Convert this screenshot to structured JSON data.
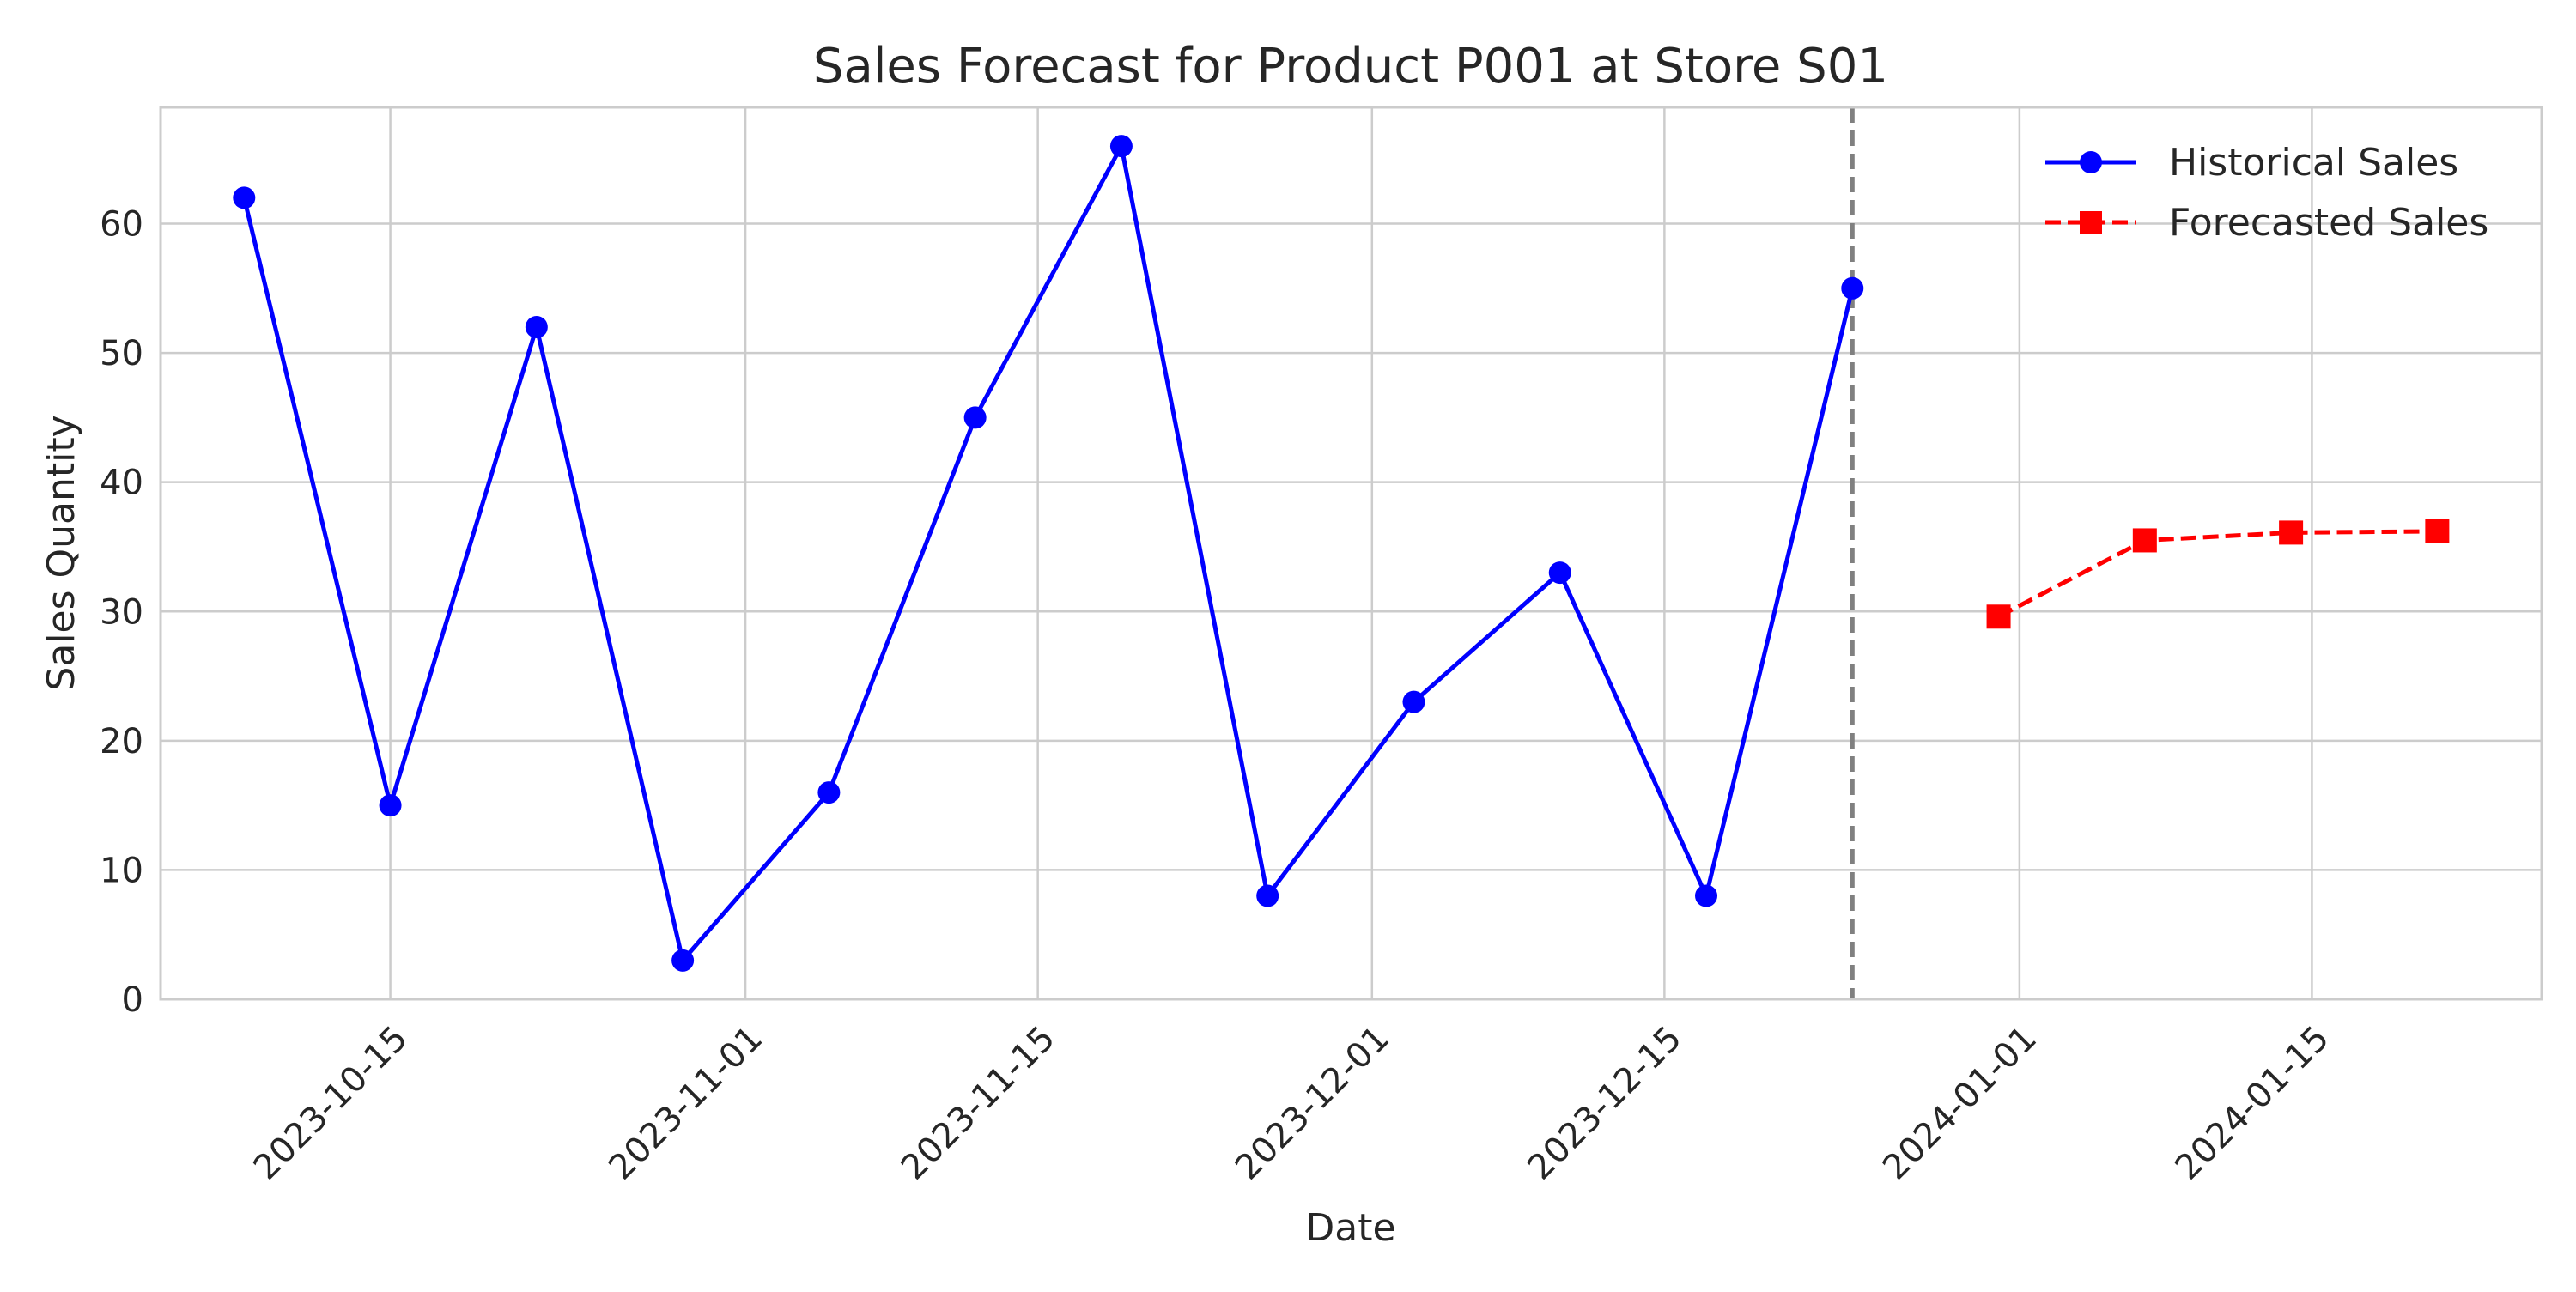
{
  "chart_data": {
    "type": "line",
    "title": "Sales Forecast for Product P001 at Store S01",
    "xlabel": "Date",
    "ylabel": "Sales Quantity",
    "x_type": "date",
    "xlim": [
      "2023-10-04",
      "2024-01-26"
    ],
    "ylim": [
      0,
      69
    ],
    "y_ticks": [
      0,
      10,
      20,
      30,
      40,
      50,
      60
    ],
    "x_ticks": [
      "2023-10-15",
      "2023-11-01",
      "2023-11-15",
      "2023-12-01",
      "2023-12-15",
      "2024-01-01",
      "2024-01-15"
    ],
    "grid": true,
    "legend_position": "top-right",
    "vertical_marker": {
      "x": "2023-12-24",
      "color": "#808080",
      "style": "dashed"
    },
    "series": [
      {
        "name": "Historical Sales",
        "color": "#0000ff",
        "marker": "circle",
        "line_style": "solid",
        "x": [
          "2023-10-08",
          "2023-10-15",
          "2023-10-22",
          "2023-10-29",
          "2023-11-05",
          "2023-11-12",
          "2023-11-19",
          "2023-11-26",
          "2023-12-03",
          "2023-12-10",
          "2023-12-17",
          "2023-12-24"
        ],
        "values": [
          62,
          15,
          52,
          3,
          16,
          45,
          66,
          8,
          23,
          33,
          8,
          55
        ]
      },
      {
        "name": "Forecasted Sales",
        "color": "#ff0000",
        "marker": "square",
        "line_style": "dashed",
        "x": [
          "2023-12-31",
          "2024-01-07",
          "2024-01-14",
          "2024-01-21"
        ],
        "values": [
          29.6,
          35.5,
          36.1,
          36.2
        ]
      }
    ]
  }
}
